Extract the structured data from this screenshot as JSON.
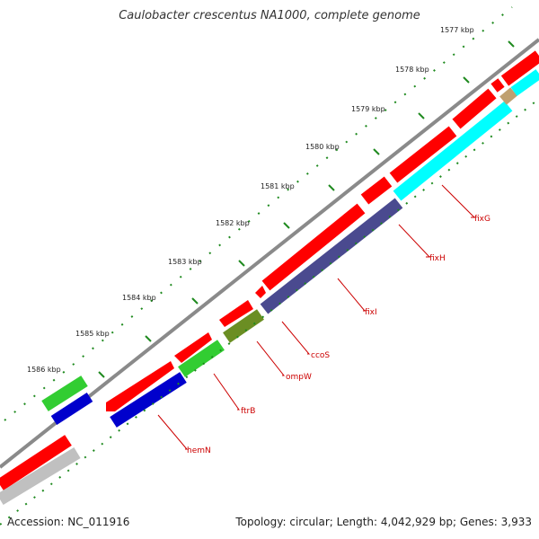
{
  "title": "Caulobacter crescentus NA1000, complete genome",
  "footer": {
    "accession": "Accession: NC_011916",
    "summary": "Topology: circular; Length: 4,042,929 bp; Genes: 3,933"
  },
  "colors": {
    "backbone": "#8a8a8a",
    "tick": "#1f8a1f",
    "label": "#cc0000",
    "forward_cds": "#ff0000",
    "gray_cds": "#c0c0c0"
  },
  "kbp_ticks": [
    "1577 kbp",
    "1578 kbp",
    "1579 kbp",
    "1580 kbp",
    "1581 kbp",
    "1582 kbp",
    "1583 kbp",
    "1584 kbp",
    "1585 kbp",
    "1586 kbp"
  ],
  "gene_labels": [
    {
      "name": "fixG",
      "color": "#00ffff"
    },
    {
      "name": "fixH",
      "color": "#bfa070"
    },
    {
      "name": "fixI",
      "color": "#4a4a8f"
    },
    {
      "name": "ccoS",
      "color": "#b0b0b0"
    },
    {
      "name": "ompW",
      "color": "#6b8e23"
    },
    {
      "name": "ftrB",
      "color": "#32cd32"
    },
    {
      "name": "hemN",
      "color": "#0000cc"
    }
  ]
}
